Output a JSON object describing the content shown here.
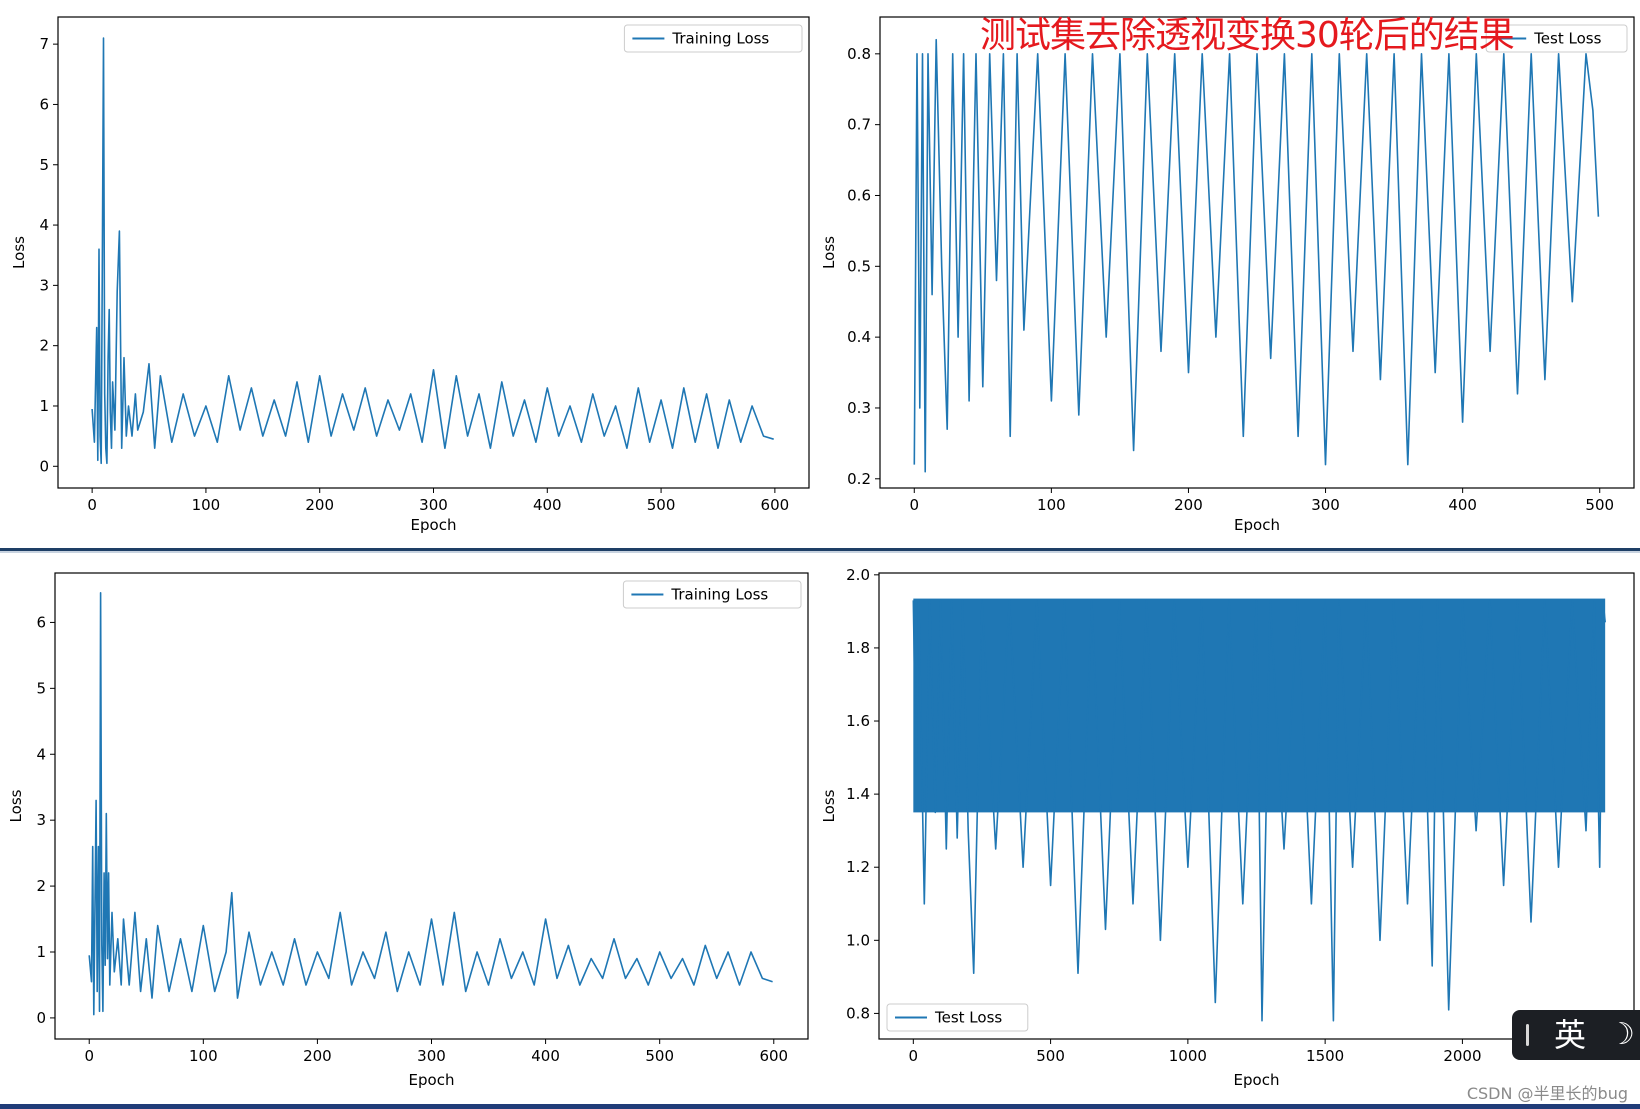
{
  "annotation_text": "测试集去除透视变换30轮后的结果",
  "ime": {
    "label": "英",
    "icon": "moon-icon",
    "bar_icon": "ime-bar-icon"
  },
  "watermark": "CSDN @半里长的bug",
  "colors": {
    "line": "#1f77b4",
    "annotation": "#e5191e",
    "divider": "#1e3f66"
  },
  "chart_data": [
    {
      "id": "p1",
      "type": "line",
      "title": "",
      "xlabel": "Epoch",
      "ylabel": "Loss",
      "xlim": [
        -30,
        630
      ],
      "ylim": [
        -0.36,
        7.45
      ],
      "xticks": [
        0,
        100,
        200,
        300,
        400,
        500,
        600
      ],
      "yticks": [
        0,
        1,
        2,
        3,
        4,
        5,
        6,
        7
      ],
      "legend": {
        "label": "Training Loss",
        "position": "top-right"
      },
      "series": [
        {
          "name": "Training Loss",
          "x": [
            0,
            2,
            4,
            5,
            6,
            7,
            8,
            9,
            10,
            11,
            12,
            13,
            14,
            15,
            16,
            17,
            18,
            20,
            22,
            24,
            26,
            28,
            30,
            32,
            35,
            38,
            40,
            45,
            50,
            55,
            60,
            70,
            80,
            90,
            100,
            110,
            120,
            130,
            140,
            150,
            160,
            170,
            180,
            190,
            200,
            210,
            220,
            230,
            240,
            250,
            260,
            270,
            280,
            290,
            300,
            310,
            320,
            330,
            340,
            350,
            360,
            370,
            380,
            390,
            400,
            410,
            420,
            430,
            440,
            450,
            460,
            470,
            480,
            490,
            500,
            510,
            520,
            530,
            540,
            550,
            560,
            570,
            580,
            590,
            599
          ],
          "y": [
            0.95,
            0.4,
            2.3,
            0.1,
            3.6,
            0.5,
            0.05,
            3.6,
            7.1,
            1.2,
            0.3,
            0.05,
            1.8,
            2.6,
            0.9,
            0.3,
            1.4,
            0.6,
            2.9,
            3.9,
            0.3,
            1.8,
            0.5,
            1.0,
            0.5,
            1.2,
            0.6,
            0.9,
            1.7,
            0.3,
            1.5,
            0.4,
            1.2,
            0.5,
            1.0,
            0.4,
            1.5,
            0.6,
            1.3,
            0.5,
            1.1,
            0.5,
            1.4,
            0.4,
            1.5,
            0.5,
            1.2,
            0.6,
            1.3,
            0.5,
            1.1,
            0.6,
            1.2,
            0.4,
            1.6,
            0.3,
            1.5,
            0.5,
            1.2,
            0.3,
            1.4,
            0.5,
            1.1,
            0.4,
            1.3,
            0.5,
            1.0,
            0.4,
            1.2,
            0.5,
            1.0,
            0.3,
            1.3,
            0.4,
            1.1,
            0.3,
            1.3,
            0.4,
            1.2,
            0.3,
            1.1,
            0.4,
            1.0,
            0.5,
            0.45
          ]
        }
      ]
    },
    {
      "id": "p2",
      "type": "line",
      "title": "",
      "xlabel": "Epoch",
      "ylabel": "Loss",
      "xlim": [
        -25,
        525
      ],
      "ylim": [
        0.187,
        0.852
      ],
      "xticks": [
        0,
        100,
        200,
        300,
        400,
        500
      ],
      "yticks": [
        0.2,
        0.3,
        0.4,
        0.5,
        0.6,
        0.7,
        0.8
      ],
      "legend": {
        "label": "Test Loss",
        "position": "top-right"
      },
      "series": [
        {
          "name": "Test Loss",
          "x": [
            0,
            2,
            4,
            6,
            8,
            10,
            13,
            16,
            20,
            24,
            28,
            32,
            36,
            40,
            45,
            50,
            55,
            60,
            65,
            70,
            75,
            80,
            90,
            100,
            110,
            120,
            130,
            140,
            150,
            160,
            170,
            180,
            190,
            200,
            210,
            220,
            230,
            240,
            250,
            260,
            270,
            280,
            290,
            300,
            310,
            320,
            330,
            340,
            350,
            360,
            370,
            380,
            390,
            400,
            410,
            420,
            430,
            440,
            450,
            460,
            470,
            480,
            490,
            495,
            499
          ],
          "y": [
            0.22,
            0.8,
            0.3,
            0.8,
            0.21,
            0.8,
            0.46,
            0.82,
            0.5,
            0.27,
            0.8,
            0.4,
            0.8,
            0.31,
            0.8,
            0.33,
            0.8,
            0.48,
            0.8,
            0.26,
            0.8,
            0.41,
            0.8,
            0.31,
            0.8,
            0.29,
            0.8,
            0.4,
            0.8,
            0.24,
            0.8,
            0.38,
            0.8,
            0.35,
            0.8,
            0.4,
            0.8,
            0.26,
            0.8,
            0.37,
            0.8,
            0.26,
            0.8,
            0.22,
            0.8,
            0.38,
            0.8,
            0.34,
            0.8,
            0.22,
            0.8,
            0.35,
            0.8,
            0.28,
            0.8,
            0.38,
            0.8,
            0.32,
            0.8,
            0.34,
            0.8,
            0.45,
            0.8,
            0.72,
            0.57
          ]
        }
      ]
    },
    {
      "id": "p3",
      "type": "line",
      "title": "",
      "xlabel": "Epoch",
      "ylabel": "Loss",
      "xlim": [
        -30,
        630
      ],
      "ylim": [
        -0.32,
        6.75
      ],
      "xticks": [
        0,
        100,
        200,
        300,
        400,
        500,
        600
      ],
      "yticks": [
        0,
        1,
        2,
        3,
        4,
        5,
        6
      ],
      "legend": {
        "label": "Training Loss",
        "position": "top-right"
      },
      "series": [
        {
          "name": "Training Loss",
          "x": [
            0,
            2,
            3,
            4,
            5,
            6,
            7,
            8,
            9,
            10,
            11,
            12,
            13,
            14,
            15,
            16,
            17,
            18,
            20,
            22,
            25,
            28,
            30,
            35,
            40,
            45,
            50,
            55,
            60,
            70,
            80,
            90,
            100,
            110,
            120,
            125,
            130,
            140,
            150,
            160,
            170,
            180,
            190,
            200,
            210,
            220,
            230,
            240,
            250,
            260,
            270,
            280,
            290,
            300,
            310,
            320,
            330,
            340,
            350,
            360,
            370,
            380,
            390,
            400,
            410,
            420,
            430,
            440,
            450,
            460,
            470,
            480,
            490,
            500,
            510,
            520,
            530,
            540,
            550,
            560,
            570,
            580,
            590,
            599
          ],
          "y": [
            0.95,
            0.55,
            2.6,
            0.05,
            1.6,
            3.3,
            0.4,
            2.6,
            0.1,
            6.45,
            1.1,
            0.1,
            2.2,
            0.8,
            3.1,
            0.9,
            2.2,
            0.5,
            1.6,
            0.7,
            1.2,
            0.5,
            1.5,
            0.5,
            1.6,
            0.4,
            1.2,
            0.3,
            1.4,
            0.4,
            1.2,
            0.4,
            1.4,
            0.4,
            1.0,
            1.9,
            0.3,
            1.3,
            0.5,
            1.0,
            0.5,
            1.2,
            0.5,
            1.0,
            0.6,
            1.6,
            0.5,
            1.0,
            0.6,
            1.3,
            0.4,
            1.0,
            0.5,
            1.5,
            0.5,
            1.6,
            0.4,
            1.0,
            0.5,
            1.2,
            0.6,
            1.0,
            0.5,
            1.5,
            0.6,
            1.1,
            0.5,
            0.9,
            0.6,
            1.2,
            0.6,
            0.9,
            0.5,
            1.0,
            0.6,
            0.9,
            0.5,
            1.1,
            0.6,
            1.0,
            0.5,
            1.0,
            0.6,
            0.55
          ]
        }
      ]
    },
    {
      "id": "p4",
      "type": "line",
      "title": "",
      "xlabel": "Epoch",
      "ylabel": "Loss",
      "xlim": [
        -125,
        2625
      ],
      "ylim": [
        0.73,
        2.005
      ],
      "xticks": [
        0,
        500,
        1000,
        1500,
        2000
      ],
      "yticks": [
        0.8,
        1.0,
        1.2,
        1.4,
        1.6,
        1.8,
        2.0
      ],
      "legend": {
        "label": "Test Loss",
        "position": "bottom-left"
      },
      "band": {
        "series": "Test Loss",
        "upper": 1.935,
        "lower": 1.35
      },
      "series": [
        {
          "name": "Test Loss",
          "x": [
            0,
            10,
            20,
            40,
            60,
            80,
            100,
            120,
            140,
            160,
            180,
            200,
            220,
            250,
            300,
            350,
            400,
            450,
            500,
            550,
            600,
            650,
            700,
            750,
            800,
            850,
            900,
            950,
            1000,
            1050,
            1100,
            1150,
            1200,
            1250,
            1270,
            1300,
            1350,
            1400,
            1450,
            1500,
            1530,
            1550,
            1600,
            1650,
            1700,
            1750,
            1800,
            1850,
            1890,
            1910,
            1950,
            2000,
            2050,
            2100,
            2150,
            2200,
            2250,
            2300,
            2350,
            2400,
            2450,
            2480,
            2500,
            2512,
            2520
          ],
          "y": [
            1.93,
            1.45,
            1.93,
            1.1,
            1.93,
            1.35,
            1.93,
            1.25,
            1.93,
            1.28,
            1.93,
            1.3,
            0.91,
            1.93,
            1.25,
            1.93,
            1.2,
            1.93,
            1.15,
            1.93,
            0.91,
            1.93,
            1.03,
            1.93,
            1.1,
            1.93,
            1.0,
            1.93,
            1.2,
            1.93,
            0.83,
            1.93,
            1.1,
            1.93,
            0.78,
            1.93,
            1.25,
            1.93,
            1.1,
            1.93,
            0.78,
            1.93,
            1.2,
            1.93,
            1.0,
            1.93,
            1.1,
            1.93,
            0.93,
            1.93,
            0.81,
            1.93,
            1.3,
            1.93,
            1.15,
            1.93,
            1.05,
            1.93,
            1.2,
            1.93,
            1.3,
            1.93,
            1.2,
            1.93,
            1.87
          ]
        }
      ]
    }
  ]
}
